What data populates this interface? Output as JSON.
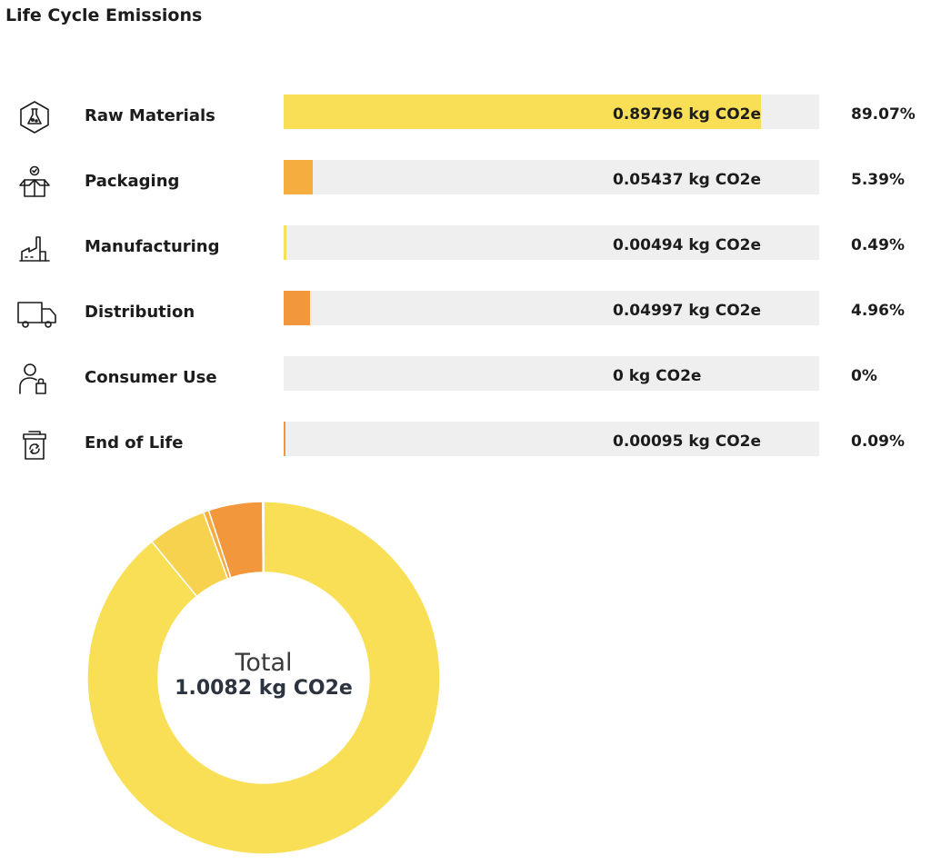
{
  "title": "Life Cycle Emissions",
  "chart_data": {
    "type": "bar",
    "unit": "kg CO2e",
    "categories": [
      "Raw Materials",
      "Packaging",
      "Manufacturing",
      "Distribution",
      "Consumer Use",
      "End of Life"
    ],
    "values": [
      0.89796,
      0.05437,
      0.00494,
      0.04997,
      0,
      0.00095
    ],
    "percents": [
      89.07,
      5.39,
      0.49,
      4.96,
      0,
      0.09
    ],
    "colors": [
      "#f8df55",
      "#f5ae3e",
      "#f8df55",
      "#f2973c",
      "#f8df55",
      "#f2973c"
    ],
    "total": 1.0082
  },
  "rows": [
    {
      "label": "Raw Materials",
      "amount": "0.89796 kg CO2e",
      "percent": "89.07%",
      "icon": "flask-icon"
    },
    {
      "label": "Packaging",
      "amount": "0.05437 kg CO2e",
      "percent": "5.39%",
      "icon": "package-icon"
    },
    {
      "label": "Manufacturing",
      "amount": "0.00494 kg CO2e",
      "percent": "0.49%",
      "icon": "factory-icon"
    },
    {
      "label": "Distribution",
      "amount": "0.04997 kg CO2e",
      "percent": "4.96%",
      "icon": "truck-icon"
    },
    {
      "label": "Consumer Use",
      "amount": "0 kg CO2e",
      "percent": "0%",
      "icon": "consumer-icon"
    },
    {
      "label": "End of Life",
      "amount": "0.00095 kg CO2e",
      "percent": "0.09%",
      "icon": "recycle-bin-icon"
    }
  ],
  "donut": {
    "total_label": "Total",
    "total_value": "1.0082 kg CO2e",
    "colors": [
      "#f8df55",
      "#f7d24f",
      "#f5ae3e",
      "#f8df55",
      "#f2973c",
      "#f8df55",
      "#f2973c"
    ]
  }
}
